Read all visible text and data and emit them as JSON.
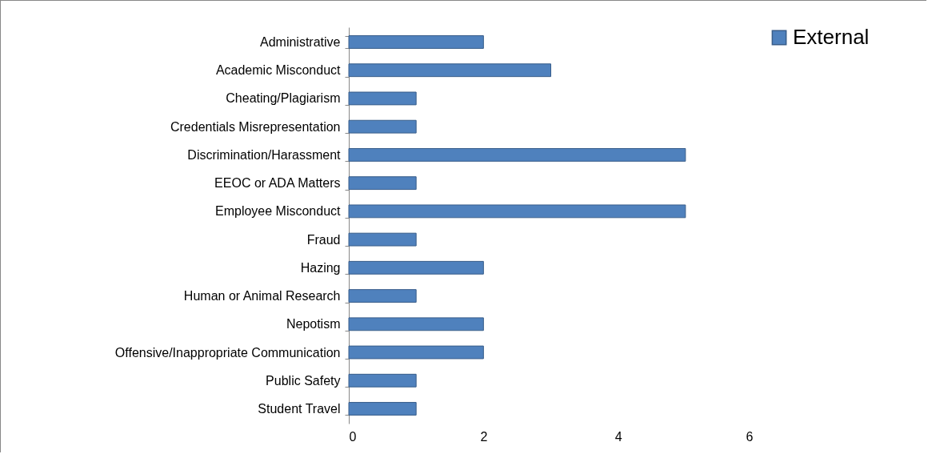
{
  "chart_data": {
    "type": "bar",
    "orientation": "horizontal",
    "categories": [
      "Administrative",
      "Academic Misconduct",
      "Cheating/Plagiarism",
      "Credentials Misrepresentation",
      "Discrimination/Harassment",
      "EEOC or ADA Matters",
      "Employee Misconduct",
      "Fraud",
      "Hazing",
      "Human or Animal Research",
      "Nepotism",
      "Offensive/Inappropriate Communication",
      "Public Safety",
      "Student Travel"
    ],
    "series": [
      {
        "name": "External",
        "color": "#4f81bd",
        "values": [
          2,
          3,
          1,
          1,
          5,
          1,
          5,
          1,
          2,
          1,
          2,
          2,
          1,
          1
        ]
      }
    ],
    "xlim": [
      0,
      6
    ],
    "xticks": [
      0,
      2,
      4,
      6
    ],
    "grid": false,
    "legend": "right"
  }
}
